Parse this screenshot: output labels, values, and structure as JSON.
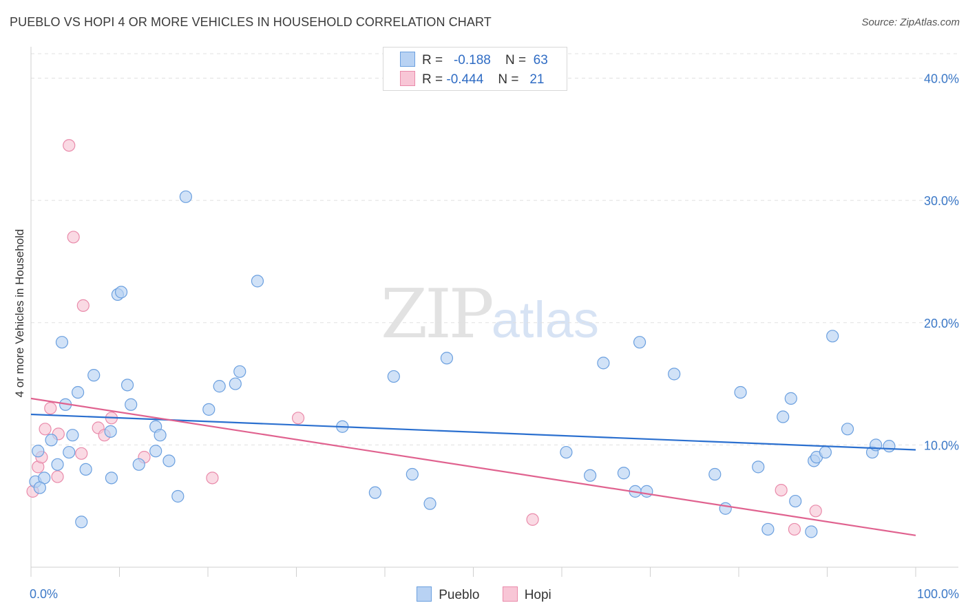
{
  "title": "PUEBLO VS HOPI 4 OR MORE VEHICLES IN HOUSEHOLD CORRELATION CHART",
  "source": "Source: ZipAtlas.com",
  "watermark": {
    "zip": "ZIP",
    "atlas": "atlas"
  },
  "legend": {
    "rows": [
      {
        "r_label": "R =",
        "r_value": "-0.188",
        "n_label": "N =",
        "n_value": "63"
      },
      {
        "r_label": "R =",
        "r_value": "-0.444",
        "n_label": "N =",
        "n_value": "21"
      }
    ]
  },
  "bottom_legend": {
    "pueblo": "Pueblo",
    "hopi": "Hopi"
  },
  "colors": {
    "pueblo_fill": "#b8d2f3",
    "pueblo_stroke": "#6a9fdf",
    "pueblo_line": "#2a6fcf",
    "hopi_fill": "#f8c6d6",
    "hopi_stroke": "#e98aaa",
    "hopi_line": "#e0628f",
    "tick_text": "#3b78c7",
    "grid": "#e0e0e0"
  },
  "chart_data": {
    "type": "scatter",
    "title": "PUEBLO VS HOPI 4 OR MORE VEHICLES IN HOUSEHOLD CORRELATION CHART",
    "xlabel": "",
    "ylabel": "4 or more Vehicles in Household",
    "xlim": [
      0,
      100
    ],
    "ylim": [
      0,
      42
    ],
    "x_tick_labels": [
      "0.0%",
      "100.0%"
    ],
    "y_ticks": [
      10,
      20,
      30,
      40
    ],
    "y_tick_labels": [
      "10.0%",
      "20.0%",
      "30.0%",
      "40.0%"
    ],
    "grid": "horizontal dashed",
    "legend_position": "top-center",
    "series": [
      {
        "name": "Pueblo",
        "r": -0.188,
        "n": 63,
        "trend": {
          "x": [
            0,
            100
          ],
          "y": [
            12.5,
            9.6
          ]
        },
        "points": [
          [
            0.5,
            7.0
          ],
          [
            0.8,
            9.5
          ],
          [
            1.5,
            7.3
          ],
          [
            2.3,
            10.4
          ],
          [
            3.0,
            8.4
          ],
          [
            3.5,
            18.4
          ],
          [
            3.9,
            13.3
          ],
          [
            4.3,
            9.4
          ],
          [
            4.7,
            10.8
          ],
          [
            5.3,
            14.3
          ],
          [
            5.7,
            3.7
          ],
          [
            6.2,
            8.0
          ],
          [
            7.1,
            15.7
          ],
          [
            9.0,
            11.1
          ],
          [
            9.1,
            7.3
          ],
          [
            9.8,
            22.3
          ],
          [
            10.2,
            22.5
          ],
          [
            10.9,
            14.9
          ],
          [
            11.3,
            13.3
          ],
          [
            12.2,
            8.4
          ],
          [
            14.1,
            11.5
          ],
          [
            14.1,
            9.5
          ],
          [
            14.6,
            10.8
          ],
          [
            15.6,
            8.7
          ],
          [
            16.6,
            5.8
          ],
          [
            17.5,
            30.3
          ],
          [
            20.1,
            12.9
          ],
          [
            21.3,
            14.8
          ],
          [
            23.1,
            15.0
          ],
          [
            23.6,
            16.0
          ],
          [
            25.6,
            23.4
          ],
          [
            35.2,
            11.5
          ],
          [
            38.9,
            6.1
          ],
          [
            41.0,
            15.6
          ],
          [
            43.1,
            7.6
          ],
          [
            45.1,
            5.2
          ],
          [
            47.0,
            17.1
          ],
          [
            60.5,
            9.4
          ],
          [
            63.2,
            7.5
          ],
          [
            64.7,
            16.7
          ],
          [
            67.0,
            7.7
          ],
          [
            68.3,
            6.2
          ],
          [
            68.8,
            18.4
          ],
          [
            69.6,
            6.2
          ],
          [
            72.7,
            15.8
          ],
          [
            77.3,
            7.6
          ],
          [
            78.5,
            4.8
          ],
          [
            80.2,
            14.3
          ],
          [
            82.2,
            8.2
          ],
          [
            83.3,
            3.1
          ],
          [
            85.0,
            12.3
          ],
          [
            85.9,
            13.8
          ],
          [
            86.4,
            5.4
          ],
          [
            88.2,
            2.9
          ],
          [
            88.5,
            8.7
          ],
          [
            88.8,
            9.0
          ],
          [
            89.8,
            9.4
          ],
          [
            90.6,
            18.9
          ],
          [
            92.3,
            11.3
          ],
          [
            95.1,
            9.4
          ],
          [
            95.5,
            10.0
          ],
          [
            97.0,
            9.9
          ],
          [
            1.0,
            6.5
          ]
        ]
      },
      {
        "name": "Hopi",
        "r": -0.444,
        "n": 21,
        "trend": {
          "x": [
            0,
            100
          ],
          "y": [
            13.8,
            2.6
          ]
        },
        "points": [
          [
            0.2,
            6.2
          ],
          [
            0.8,
            8.2
          ],
          [
            1.2,
            9.0
          ],
          [
            1.6,
            11.3
          ],
          [
            2.2,
            13.0
          ],
          [
            3.0,
            7.4
          ],
          [
            3.1,
            10.9
          ],
          [
            4.3,
            34.5
          ],
          [
            4.8,
            27.0
          ],
          [
            5.7,
            9.3
          ],
          [
            5.9,
            21.4
          ],
          [
            7.6,
            11.4
          ],
          [
            8.3,
            10.8
          ],
          [
            9.1,
            12.2
          ],
          [
            12.8,
            9.0
          ],
          [
            20.5,
            7.3
          ],
          [
            30.2,
            12.2
          ],
          [
            56.7,
            3.9
          ],
          [
            84.8,
            6.3
          ],
          [
            86.3,
            3.1
          ],
          [
            88.7,
            4.6
          ]
        ]
      }
    ]
  }
}
